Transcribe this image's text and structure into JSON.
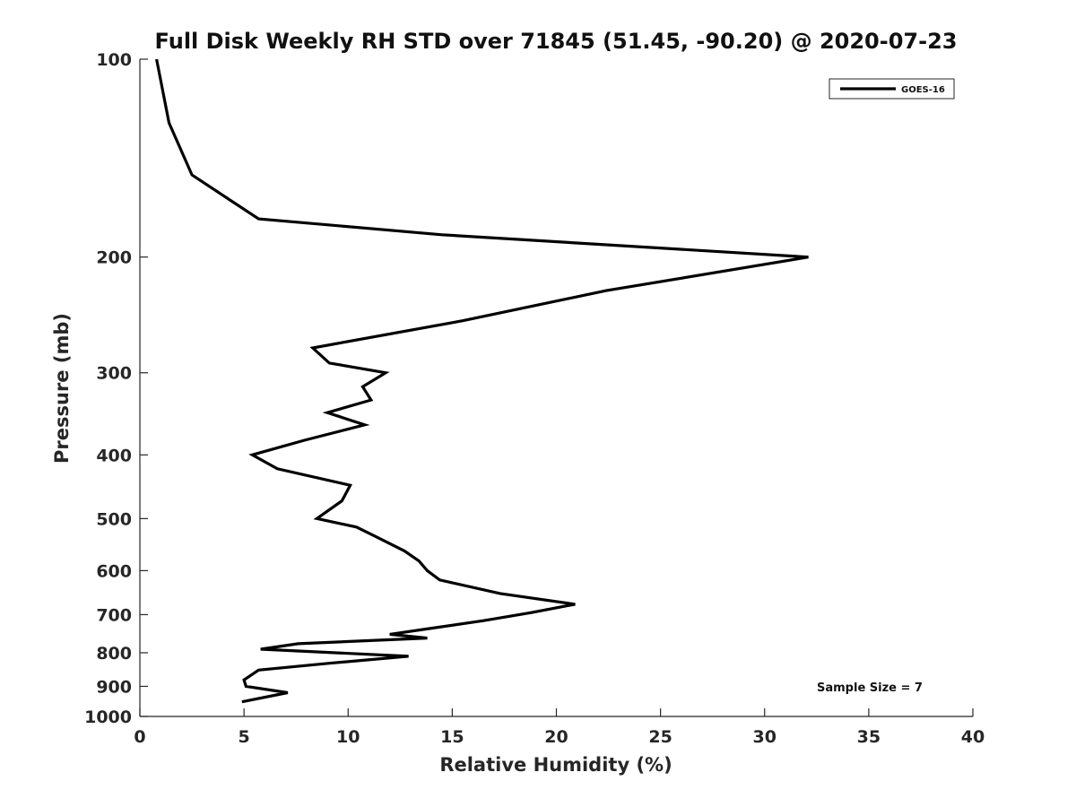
{
  "chart_data": {
    "type": "line",
    "title": "Full Disk Weekly RH STD over 71845 (51.45, -90.20) @ 2020-07-23",
    "xlabel": "Relative Humidity (%)",
    "ylabel": "Pressure (mb)",
    "xlim": [
      0,
      40
    ],
    "ylim": [
      100,
      1000
    ],
    "y_scale": "log",
    "y_reversed": true,
    "x_ticks": [
      0,
      5,
      10,
      15,
      20,
      25,
      30,
      35,
      40
    ],
    "y_ticks": [
      100,
      200,
      300,
      400,
      500,
      600,
      700,
      800,
      900,
      1000
    ],
    "grid": false,
    "legend_position": "top-right",
    "annotation": "Sample Size = 7",
    "series": [
      {
        "name": "GOES-16",
        "color": "#000000",
        "x": [
          0.8,
          1.4,
          2.5,
          5.7,
          14.5,
          32.1,
          22.4,
          15.5,
          8.3,
          9.1,
          11.8,
          10.7,
          11.1,
          9.0,
          10.8,
          7.9,
          5.4,
          6.6,
          10.1,
          9.7,
          8.5,
          10.4,
          11.2,
          12.7,
          13.4,
          13.8,
          14.4,
          17.3,
          20.9,
          18.8,
          16.5,
          13.9,
          12.0,
          13.8,
          7.6,
          5.8,
          12.9,
          9.1,
          5.7,
          5.0,
          5.1,
          7.1,
          4.9
        ],
        "y": [
          100,
          125,
          150,
          175,
          185,
          200,
          225,
          250,
          275,
          290,
          300,
          315,
          330,
          345,
          360,
          380,
          400,
          420,
          445,
          470,
          500,
          515,
          530,
          560,
          580,
          600,
          620,
          650,
          675,
          695,
          715,
          735,
          750,
          760,
          775,
          790,
          810,
          830,
          850,
          880,
          900,
          920,
          950
        ]
      }
    ]
  }
}
